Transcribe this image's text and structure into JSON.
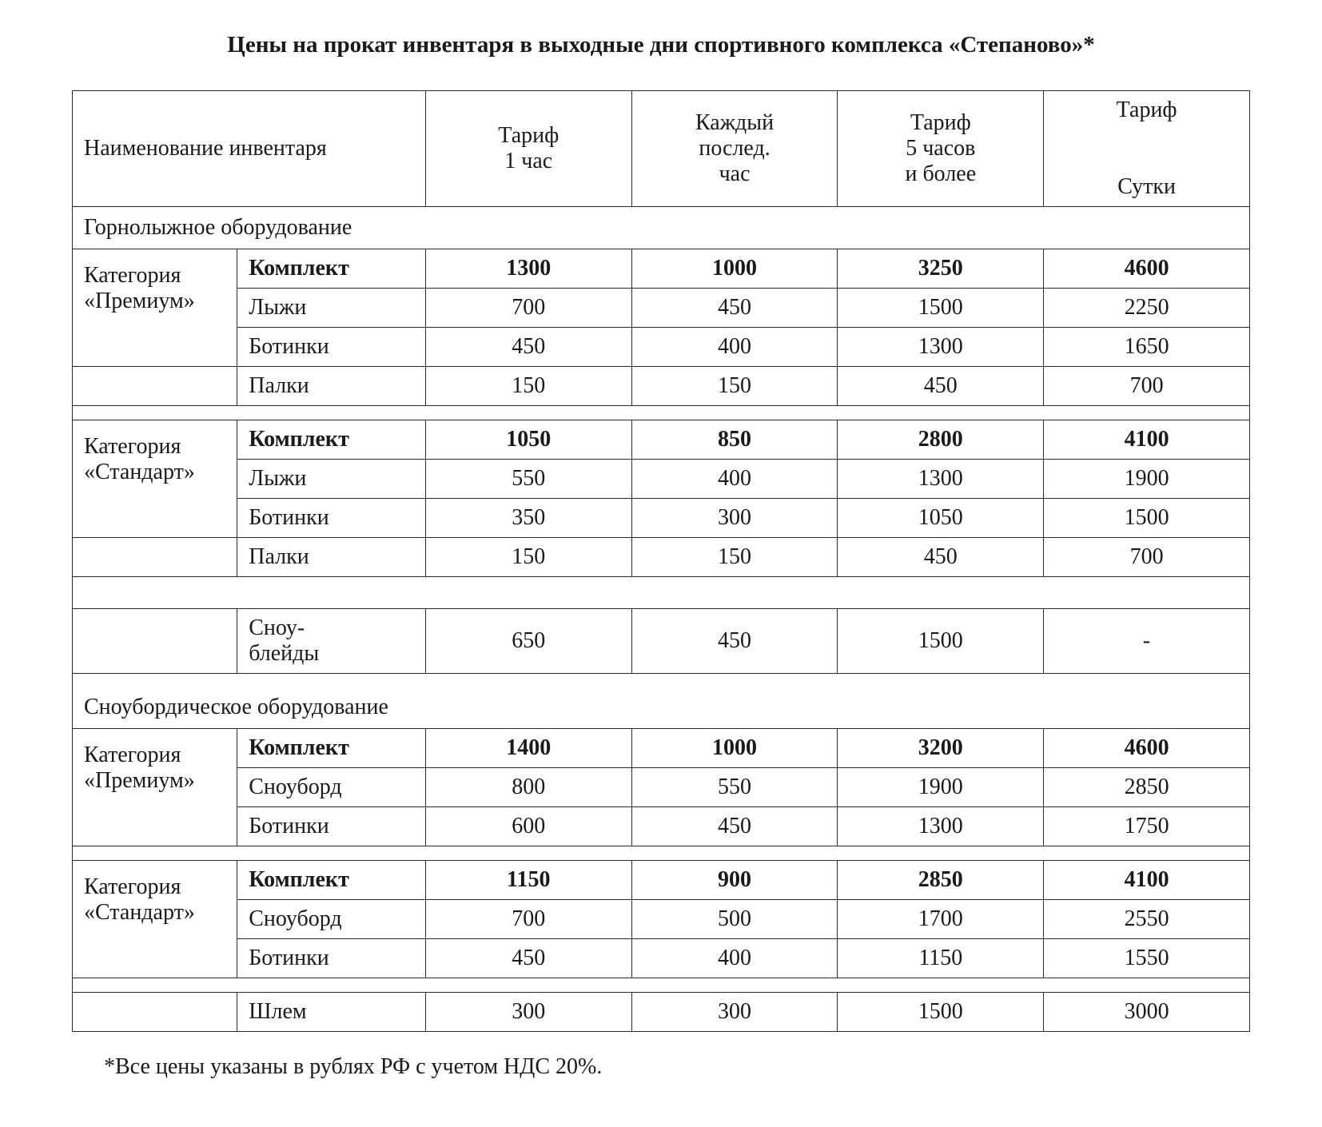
{
  "title": "Цены на прокат инвентаря в выходные дни спортивного комплекса «Степаново»*",
  "headers": {
    "name": "Наименование инвентаря",
    "hour1": "Тариф\n1 час",
    "eachHour": "Каждый\nпослед.\nчас",
    "hours5": "Тариф\n5 часов\nи более",
    "day": "Тариф\n\nСутки"
  },
  "section1": "Горнолыжное оборудование",
  "cat_premium": "Категория\n«Премиум»",
  "cat_standard": "Категория\n«Стандарт»",
  "ski_premium": {
    "set": {
      "name": "Комплект",
      "h1": "1300",
      "he": "1000",
      "h5": "3250",
      "d": "4600"
    },
    "skis": {
      "name": "Лыжи",
      "h1": "700",
      "he": "450",
      "h5": "1500",
      "d": "2250"
    },
    "boots": {
      "name": "Ботинки",
      "h1": "450",
      "he": "400",
      "h5": "1300",
      "d": "1650"
    },
    "poles": {
      "name": "Палки",
      "h1": "150",
      "he": "150",
      "h5": "450",
      "d": "700"
    }
  },
  "ski_standard": {
    "set": {
      "name": "Комплект",
      "h1": "1050",
      "he": "850",
      "h5": "2800",
      "d": "4100"
    },
    "skis": {
      "name": "Лыжи",
      "h1": "550",
      "he": "400",
      "h5": "1300",
      "d": "1900"
    },
    "boots": {
      "name": "Ботинки",
      "h1": "350",
      "he": "300",
      "h5": "1050",
      "d": "1500"
    },
    "poles": {
      "name": "Палки",
      "h1": "150",
      "he": "150",
      "h5": "450",
      "d": "700"
    }
  },
  "snowblades": {
    "name": "Сноу-\nблейды",
    "h1": "650",
    "he": "450",
    "h5": "1500",
    "d": "-"
  },
  "section2": "Сноубордическое оборудование",
  "sb_premium": {
    "set": {
      "name": "Комплект",
      "h1": "1400",
      "he": "1000",
      "h5": "3200",
      "d": "4600"
    },
    "board": {
      "name": "Сноуборд",
      "h1": "800",
      "he": "550",
      "h5": "1900",
      "d": "2850"
    },
    "boots": {
      "name": "Ботинки",
      "h1": "600",
      "he": "450",
      "h5": "1300",
      "d": "1750"
    }
  },
  "sb_standard": {
    "set": {
      "name": "Комплект",
      "h1": "1150",
      "he": "900",
      "h5": "2850",
      "d": "4100"
    },
    "board": {
      "name": "Сноуборд",
      "h1": "700",
      "he": "500",
      "h5": "1700",
      "d": "2550"
    },
    "boots": {
      "name": "Ботинки",
      "h1": "450",
      "he": "400",
      "h5": "1150",
      "d": "1550"
    }
  },
  "helmet": {
    "name": "Шлем",
    "h1": "300",
    "he": "300",
    "h5": "1500",
    "d": "3000"
  },
  "footnote": "*Все цены указаны в рублях РФ с учетом НДС 20%."
}
